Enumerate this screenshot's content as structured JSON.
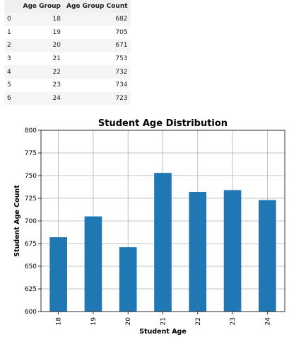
{
  "table": {
    "headers": {
      "index": "",
      "age_group": "Age Group",
      "count": "Age Group Count"
    },
    "rows": [
      {
        "index": "0",
        "age_group": "18",
        "count": "682"
      },
      {
        "index": "1",
        "age_group": "19",
        "count": "705"
      },
      {
        "index": "2",
        "age_group": "20",
        "count": "671"
      },
      {
        "index": "3",
        "age_group": "21",
        "count": "753"
      },
      {
        "index": "4",
        "age_group": "22",
        "count": "732"
      },
      {
        "index": "5",
        "age_group": "23",
        "count": "734"
      },
      {
        "index": "6",
        "age_group": "24",
        "count": "723"
      }
    ]
  },
  "chart_data": {
    "type": "bar",
    "title": "Student Age Distribution",
    "xlabel": "Student Age",
    "ylabel": "Student Age Count",
    "categories": [
      "18",
      "19",
      "20",
      "21",
      "22",
      "23",
      "24"
    ],
    "values": [
      682,
      705,
      671,
      753,
      732,
      734,
      723
    ],
    "ylim": [
      600,
      800
    ],
    "yticks": [
      600,
      625,
      650,
      675,
      700,
      725,
      750,
      775,
      800
    ],
    "ytick_labels": [
      "600",
      "625",
      "650",
      "675",
      "700",
      "725",
      "750",
      "775",
      "800"
    ],
    "grid": true,
    "legend": false,
    "bar_color": "#1f77b4",
    "grid_color": "#b0b0b0"
  }
}
